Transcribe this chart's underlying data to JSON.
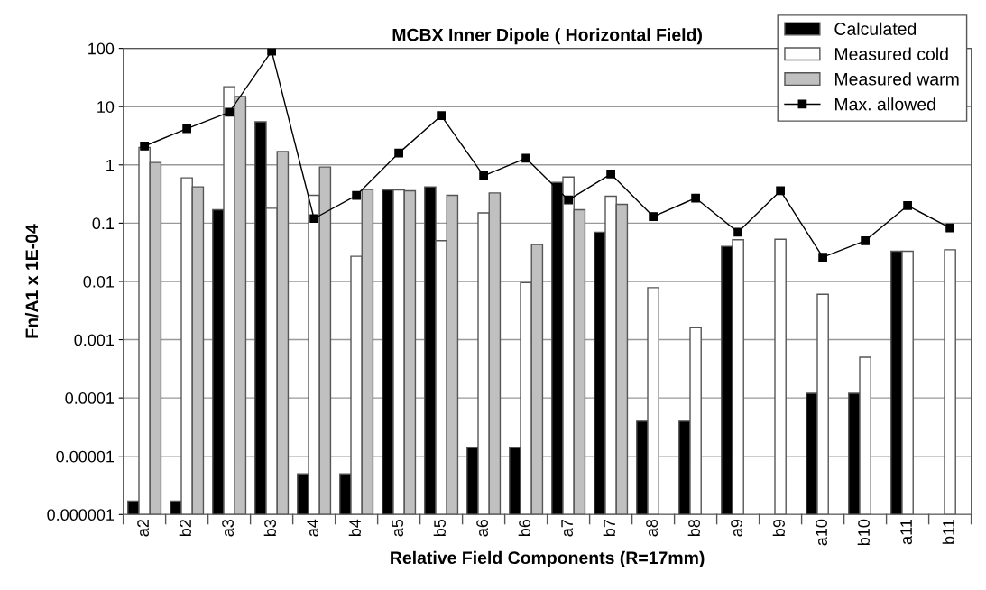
{
  "chart_data": {
    "type": "bar",
    "title": "MCBX Inner Dipole ( Horizontal Field)",
    "xlabel": "Relative Field Components (R=17mm)",
    "ylabel": "Fn/A1 x 1E-04",
    "categories": [
      "a2",
      "b2",
      "a3",
      "b3",
      "a4",
      "b4",
      "a5",
      "b5",
      "a6",
      "b6",
      "a7",
      "b7",
      "a8",
      "b8",
      "a9",
      "b9",
      "a10",
      "b10",
      "a11",
      "b11"
    ],
    "series": [
      {
        "name": "Calculated",
        "color": "#000000",
        "values": [
          1.7e-06,
          1.7e-06,
          0.17,
          5.5,
          5e-06,
          5e-06,
          0.37,
          0.42,
          1.4e-05,
          1.4e-05,
          0.5,
          0.07,
          4e-05,
          4e-05,
          0.04,
          null,
          0.00012,
          0.00012,
          0.033,
          null
        ]
      },
      {
        "name": "Measured cold",
        "color": "#ffffff",
        "values": [
          2.0,
          0.6,
          22,
          0.18,
          0.3,
          0.027,
          0.37,
          0.05,
          0.15,
          0.0095,
          0.62,
          0.29,
          0.0078,
          0.0016,
          0.052,
          0.053,
          0.006,
          0.0005,
          0.033,
          0.035
        ]
      },
      {
        "name": "Measured warm",
        "color": "#c0c0c0",
        "values": [
          1.1,
          0.42,
          15,
          1.7,
          0.92,
          0.38,
          0.36,
          0.3,
          0.33,
          0.043,
          0.17,
          0.21,
          null,
          null,
          null,
          null,
          null,
          null,
          null,
          null
        ]
      },
      {
        "name": "Max. allowed",
        "type": "line",
        "color": "#000000",
        "marker": "square",
        "values": [
          2.1,
          4.2,
          8,
          90,
          0.12,
          0.3,
          1.6,
          7,
          0.65,
          1.3,
          0.25,
          0.7,
          0.13,
          0.27,
          0.07,
          0.36,
          0.026,
          0.05,
          0.2,
          0.083
        ]
      }
    ],
    "log": "y",
    "ylim": [
      1e-06,
      100
    ],
    "yticks": [
      {
        "value": 1e-06,
        "label": "0.000001"
      },
      {
        "value": 1e-05,
        "label": "0.00001"
      },
      {
        "value": 0.0001,
        "label": "0.0001"
      },
      {
        "value": 0.001,
        "label": "0.001"
      },
      {
        "value": 0.01,
        "label": "0.01"
      },
      {
        "value": 0.1,
        "label": "0.1"
      },
      1,
      10,
      100
    ],
    "grid": "y",
    "legend": "top right"
  }
}
